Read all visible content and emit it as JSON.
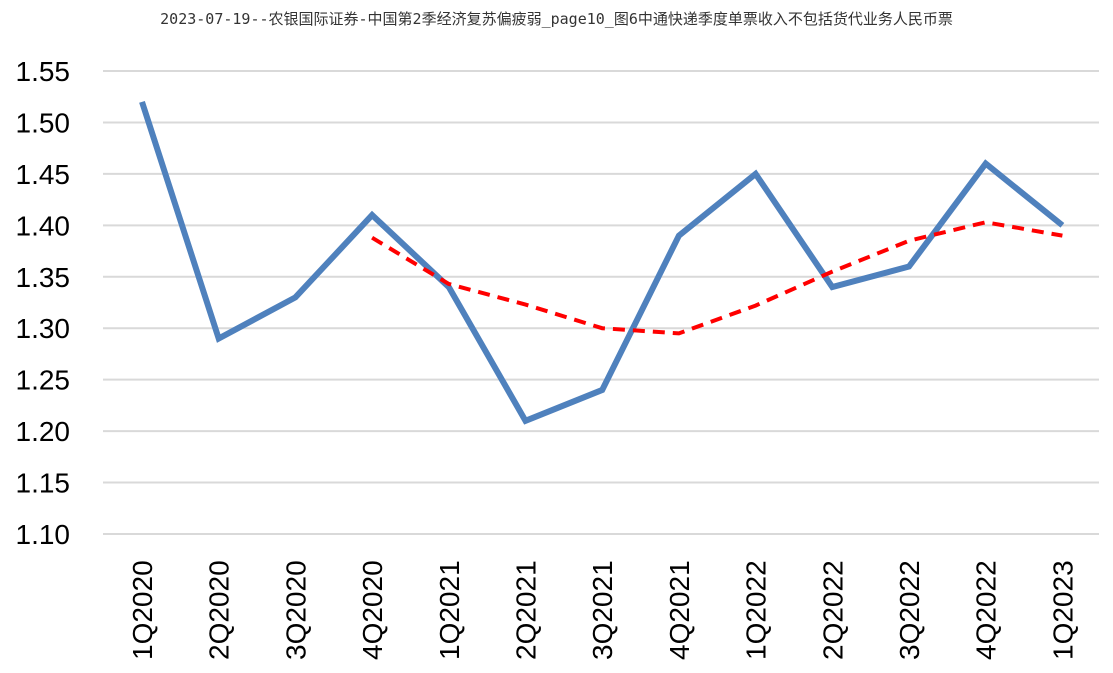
{
  "title": "2023-07-19--农银国际证券-中国第2季经济复苏偏疲弱_page10_图6中通快递季度单票收入不包括货代业务人民币票",
  "chart_data": {
    "type": "line",
    "title": "2023-07-19--农银国际证券-中国第2季经济复苏偏疲弱_page10_图6中通快递季度单票收入不包括货代业务人民币票",
    "categories": [
      "1Q2020",
      "2Q2020",
      "3Q2020",
      "4Q2020",
      "1Q2021",
      "2Q2021",
      "3Q2021",
      "4Q2021",
      "1Q2022",
      "2Q2022",
      "3Q2022",
      "4Q2022",
      "1Q2023"
    ],
    "ylim": [
      1.1,
      1.55
    ],
    "yticks": [
      "1.10",
      "1.15",
      "1.20",
      "1.25",
      "1.30",
      "1.35",
      "1.40",
      "1.45",
      "1.50",
      "1.55"
    ],
    "grid": true,
    "series": [
      {
        "style": "solid",
        "color": "#4f81bd",
        "values": [
          1.52,
          1.29,
          1.33,
          1.41,
          1.34,
          1.21,
          1.24,
          1.39,
          1.45,
          1.34,
          1.36,
          1.46,
          1.4
        ]
      },
      {
        "style": "dashed",
        "color": "#ff0000",
        "values": [
          null,
          null,
          null,
          1.388,
          1.343,
          1.323,
          1.3,
          1.295,
          1.322,
          1.355,
          1.385,
          1.403,
          1.39
        ]
      }
    ]
  }
}
